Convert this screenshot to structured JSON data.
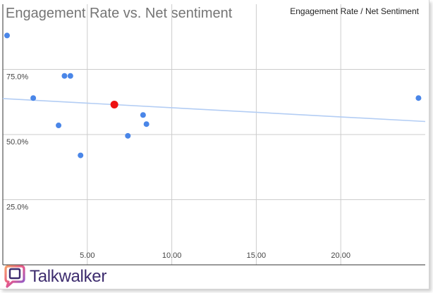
{
  "brand": {
    "name": "Talkwalker"
  },
  "colors": {
    "point": "#4a86e8",
    "highlight": "#ee1111",
    "trendline": "#b3cdf4",
    "grid": "#cccccc",
    "axis": "#333333",
    "tick_text": "#444444"
  },
  "chart_data": {
    "type": "scatter",
    "title": "Engagement Rate vs. Net sentiment",
    "legend": "Engagement Rate / Net Sentiment",
    "legend_position": "top-right",
    "xlabel": "",
    "ylabel": "",
    "xlim": [
      0,
      25
    ],
    "ylim": [
      0,
      1.0
    ],
    "x_ticks": [
      5,
      10,
      15,
      20
    ],
    "x_tick_labels": [
      "5.00",
      "10.00",
      "15.00",
      "20.00"
    ],
    "y_ticks": [
      0.25,
      0.5,
      0.75
    ],
    "y_tick_labels": [
      "25.0%",
      "50.0%",
      "75.0%"
    ],
    "grid": true,
    "points": [
      {
        "x": 0.25,
        "y": 0.88
      },
      {
        "x": 1.8,
        "y": 0.64
      },
      {
        "x": 3.3,
        "y": 0.535
      },
      {
        "x": 3.65,
        "y": 0.725
      },
      {
        "x": 4.0,
        "y": 0.725
      },
      {
        "x": 4.6,
        "y": 0.42
      },
      {
        "x": 7.4,
        "y": 0.495
      },
      {
        "x": 8.3,
        "y": 0.575
      },
      {
        "x": 8.5,
        "y": 0.54
      },
      {
        "x": 24.6,
        "y": 0.64
      }
    ],
    "highlighted_point": {
      "x": 6.6,
      "y": 0.615
    },
    "trendline": {
      "x": [
        0,
        25
      ],
      "y": [
        0.638,
        0.55
      ]
    }
  }
}
